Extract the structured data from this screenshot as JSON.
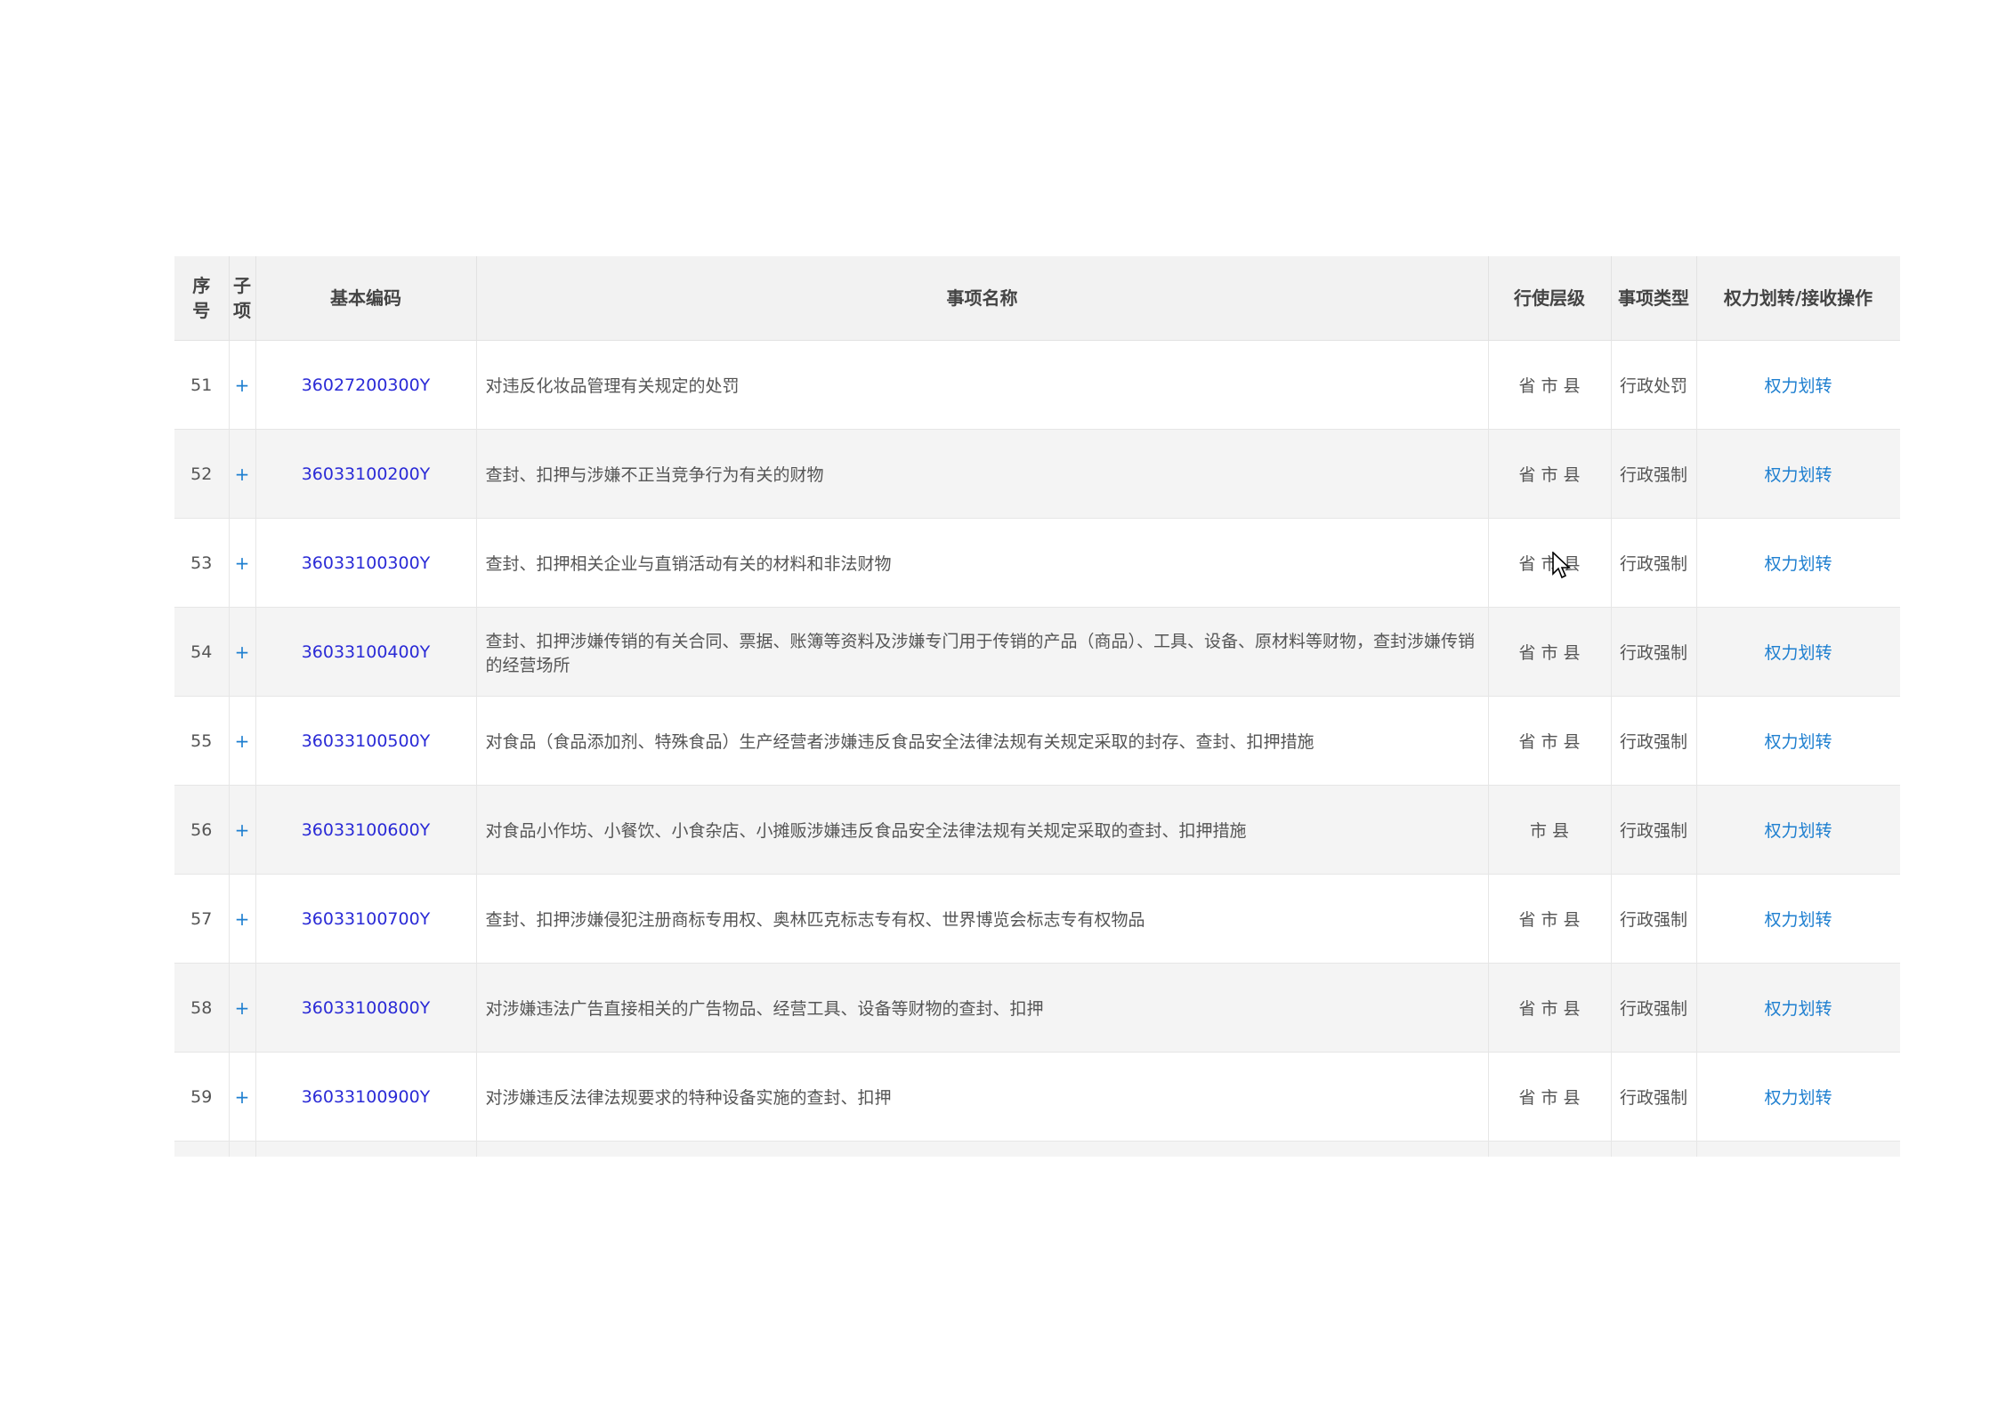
{
  "table": {
    "headers": {
      "seq": "序\n号",
      "seq_top": "序",
      "seq_bottom": "号",
      "sub_top": "子",
      "sub_bottom": "项",
      "code": "基本编码",
      "name": "事项名称",
      "level": "行使层级",
      "type": "事项类型",
      "action": "权力划转/接收操作"
    },
    "rows": [
      {
        "seq": "51",
        "sub": "+",
        "code": "36027200300Y",
        "name": "对违反化妆品管理有关规定的处罚",
        "level": "省 市 县",
        "type": "行政处罚",
        "action": "权力划转"
      },
      {
        "seq": "52",
        "sub": "+",
        "code": "36033100200Y",
        "name": "查封、扣押与涉嫌不正当竞争行为有关的财物",
        "level": "省 市 县",
        "type": "行政强制",
        "action": "权力划转"
      },
      {
        "seq": "53",
        "sub": "+",
        "code": "36033100300Y",
        "name": "查封、扣押相关企业与直销活动有关的材料和非法财物",
        "level": "省 市 县",
        "type": "行政强制",
        "action": "权力划转"
      },
      {
        "seq": "54",
        "sub": "+",
        "code": "36033100400Y",
        "name": "查封、扣押涉嫌传销的有关合同、票据、账簿等资料及涉嫌专门用于传销的产品（商品）、工具、设备、原材料等财物，查封涉嫌传销的经营场所",
        "level": "省 市 县",
        "type": "行政强制",
        "action": "权力划转"
      },
      {
        "seq": "55",
        "sub": "+",
        "code": "36033100500Y",
        "name": "对食品（食品添加剂、特殊食品）生产经营者涉嫌违反食品安全法律法规有关规定采取的封存、查封、扣押措施",
        "level": "省 市 县",
        "type": "行政强制",
        "action": "权力划转"
      },
      {
        "seq": "56",
        "sub": "+",
        "code": "36033100600Y",
        "name": "对食品小作坊、小餐饮、小食杂店、小摊贩涉嫌违反食品安全法律法规有关规定采取的查封、扣押措施",
        "level": "市 县",
        "type": "行政强制",
        "action": "权力划转"
      },
      {
        "seq": "57",
        "sub": "+",
        "code": "36033100700Y",
        "name": "查封、扣押涉嫌侵犯注册商标专用权、奥林匹克标志专有权、世界博览会标志专有权物品",
        "level": "省 市 县",
        "type": "行政强制",
        "action": "权力划转"
      },
      {
        "seq": "58",
        "sub": "+",
        "code": "36033100800Y",
        "name": "对涉嫌违法广告直接相关的广告物品、经营工具、设备等财物的查封、扣押",
        "level": "省 市 县",
        "type": "行政强制",
        "action": "权力划转"
      },
      {
        "seq": "59",
        "sub": "+",
        "code": "36033100900Y",
        "name": "对涉嫌违反法律法规要求的特种设备实施的查封、扣押",
        "level": "省 市 县",
        "type": "行政强制",
        "action": "权力划转"
      }
    ]
  },
  "colors": {
    "code": "#2a2ad6",
    "link": "#1e7fd0",
    "header_bg": "#f2f2f2",
    "stripe": "#f4f4f4"
  }
}
